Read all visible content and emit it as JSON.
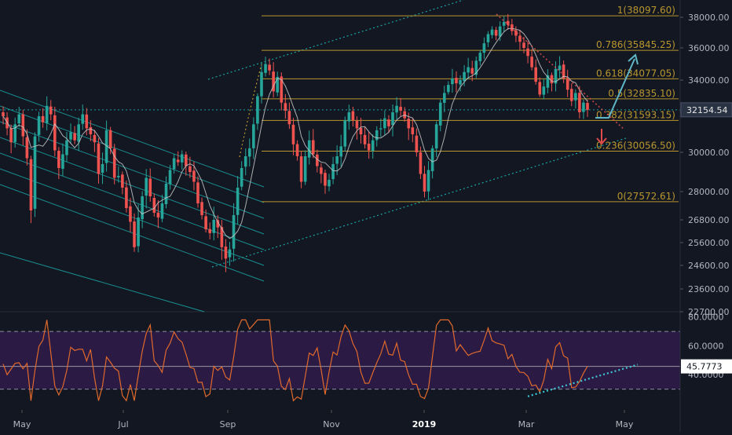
{
  "chart_data": {
    "type": "candlestick",
    "colors": {
      "background": "#131722",
      "up": "#26a69a",
      "down": "#ef5350",
      "fib": "#b8962e",
      "channel": "#1aa3a3",
      "ma": "#c8c8c8",
      "rsi": "#e0692c",
      "rsi_band": "#2a1a44",
      "axis_text": "#b2b5be",
      "last_price_label": "#2a3344",
      "arrow_up": "#5fb6c7",
      "arrow_down": "#e04b4b"
    },
    "price_panel": {
      "ylim": [
        22500,
        38600
      ],
      "yticks": [
        "38000.00",
        "36000.00",
        "34000.00",
        "32000.00",
        "30000.00",
        "28000.00",
        "26800.00",
        "25600.00",
        "24600.00",
        "23600.00",
        "22700.00"
      ],
      "ytick_values": [
        38000,
        36000,
        34000,
        32000,
        30000,
        28000,
        26800,
        25600,
        24600,
        23600,
        22700
      ],
      "last_price": "32154.54",
      "last_price_value": 32154.54,
      "fib_levels": [
        {
          "label": "1(38097.60)",
          "value": 38097.6
        },
        {
          "label": "0.786(35845.25)",
          "value": 35845.25
        },
        {
          "label": "0.618(34077.05)",
          "value": 34077.05
        },
        {
          "label": "0.5(32835.10)",
          "value": 32835.1
        },
        {
          "label": "0.382(31593.15)",
          "value": 31593.15
        },
        {
          "label": "0.236(30056.50)",
          "value": 30056.5
        },
        {
          "label": "0(27572.61)",
          "value": 27572.61
        }
      ]
    },
    "rsi_panel": {
      "ylim": [
        20,
        82
      ],
      "yticks": [
        "80.0000",
        "60.0000",
        "40.0000"
      ],
      "ytick_values": [
        80,
        60,
        40
      ],
      "bands": [
        70,
        30
      ],
      "last_value": "45.7773",
      "last_value_num": 45.7773
    },
    "x_axis": {
      "labels": [
        "May",
        "Jul",
        "Sep",
        "Nov",
        "2019",
        "Mar",
        "May"
      ],
      "bold": [
        false,
        false,
        false,
        false,
        true,
        false,
        false
      ]
    },
    "ohlc_close_path": [
      [
        31800,
        1
      ],
      [
        31200,
        2
      ],
      [
        30500,
        3
      ],
      [
        31400,
        4
      ],
      [
        31900,
        5
      ],
      [
        30800,
        6
      ],
      [
        29700,
        7
      ],
      [
        27200,
        8
      ],
      [
        30800,
        9
      ],
      [
        31800,
        10
      ],
      [
        31500,
        11
      ],
      [
        32400,
        12
      ],
      [
        31900,
        13
      ],
      [
        30100,
        14
      ],
      [
        29200,
        15
      ],
      [
        29900,
        16
      ],
      [
        30600,
        17
      ],
      [
        31000,
        18
      ],
      [
        30600,
        19
      ],
      [
        31400,
        20
      ],
      [
        31900,
        21
      ],
      [
        31200,
        22
      ],
      [
        30900,
        23
      ],
      [
        30500,
        24
      ],
      [
        28900,
        25
      ],
      [
        29400,
        26
      ],
      [
        31100,
        27
      ],
      [
        30200,
        28
      ],
      [
        28700,
        29
      ],
      [
        28800,
        30
      ],
      [
        28200,
        31
      ],
      [
        27300,
        32
      ],
      [
        26700,
        33
      ],
      [
        25400,
        34
      ],
      [
        26900,
        35
      ],
      [
        27800,
        36
      ],
      [
        28700,
        37
      ],
      [
        27800,
        38
      ],
      [
        27100,
        39
      ],
      [
        26900,
        40
      ],
      [
        27500,
        41
      ],
      [
        28400,
        42
      ],
      [
        29100,
        43
      ],
      [
        29700,
        44
      ],
      [
        29500,
        45
      ],
      [
        29900,
        46
      ],
      [
        29300,
        47
      ],
      [
        29000,
        48
      ],
      [
        28500,
        49
      ],
      [
        27500,
        50
      ],
      [
        27000,
        51
      ],
      [
        26300,
        52
      ],
      [
        26100,
        53
      ],
      [
        26800,
        54
      ],
      [
        26400,
        55
      ],
      [
        25400,
        56
      ],
      [
        24900,
        57
      ],
      [
        25300,
        58
      ],
      [
        27000,
        59
      ],
      [
        28200,
        60
      ],
      [
        29200,
        61
      ],
      [
        29800,
        62
      ],
      [
        30200,
        63
      ],
      [
        31400,
        64
      ],
      [
        33000,
        65
      ],
      [
        34500,
        66
      ],
      [
        35000,
        67
      ],
      [
        34600,
        68
      ],
      [
        33300,
        69
      ],
      [
        34200,
        70
      ],
      [
        32600,
        71
      ],
      [
        32100,
        72
      ],
      [
        31400,
        73
      ],
      [
        30400,
        74
      ],
      [
        29800,
        75
      ],
      [
        28500,
        76
      ],
      [
        29800,
        77
      ],
      [
        30600,
        78
      ],
      [
        29900,
        79
      ],
      [
        29300,
        80
      ],
      [
        28900,
        81
      ],
      [
        28300,
        82
      ],
      [
        28600,
        83
      ],
      [
        29400,
        84
      ],
      [
        29800,
        85
      ],
      [
        30300,
        86
      ],
      [
        31600,
        87
      ],
      [
        32000,
        88
      ],
      [
        31600,
        89
      ],
      [
        31200,
        90
      ],
      [
        30900,
        91
      ],
      [
        30400,
        92
      ],
      [
        30100,
        93
      ],
      [
        30600,
        94
      ],
      [
        31100,
        95
      ],
      [
        31200,
        96
      ],
      [
        31700,
        97
      ],
      [
        31300,
        98
      ],
      [
        32000,
        99
      ],
      [
        32400,
        100
      ],
      [
        32100,
        101
      ],
      [
        31700,
        102
      ],
      [
        31200,
        103
      ],
      [
        30900,
        104
      ],
      [
        30000,
        105
      ],
      [
        28900,
        106
      ],
      [
        28000,
        107
      ],
      [
        29100,
        108
      ],
      [
        30200,
        109
      ],
      [
        31400,
        110
      ],
      [
        32600,
        111
      ],
      [
        33200,
        112
      ],
      [
        33700,
        113
      ],
      [
        34100,
        114
      ],
      [
        33800,
        115
      ],
      [
        34000,
        116
      ],
      [
        34500,
        117
      ],
      [
        34800,
        118
      ],
      [
        34400,
        119
      ],
      [
        35200,
        120
      ],
      [
        35700,
        121
      ],
      [
        36300,
        122
      ],
      [
        36900,
        123
      ],
      [
        37200,
        124
      ],
      [
        36800,
        125
      ],
      [
        37400,
        126
      ],
      [
        37700,
        127
      ],
      [
        37500,
        128
      ],
      [
        37100,
        129
      ],
      [
        36800,
        130
      ],
      [
        36400,
        131
      ],
      [
        36000,
        132
      ],
      [
        35500,
        133
      ],
      [
        34800,
        134
      ],
      [
        33900,
        135
      ],
      [
        33100,
        136
      ],
      [
        33600,
        137
      ],
      [
        34300,
        138
      ],
      [
        33800,
        139
      ],
      [
        34700,
        140
      ],
      [
        34900,
        141
      ],
      [
        34100,
        142
      ],
      [
        33400,
        143
      ],
      [
        32700,
        144
      ],
      [
        33200,
        145
      ],
      [
        32000,
        146
      ],
      [
        32600,
        147
      ],
      [
        32154,
        148
      ]
    ]
  }
}
